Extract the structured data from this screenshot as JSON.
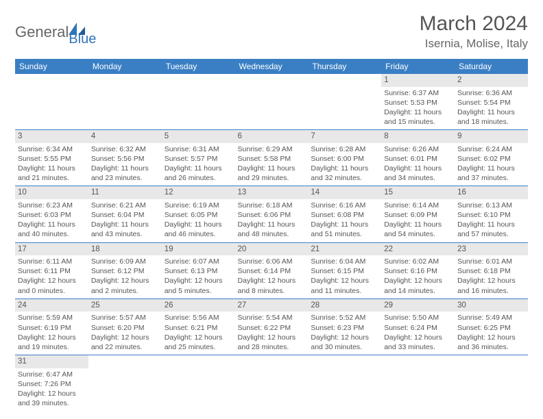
{
  "logo": {
    "part1": "General",
    "part2": "Blue"
  },
  "title": "March 2024",
  "location": "Isernia, Molise, Italy",
  "colors": {
    "header_bg": "#3a7fc4",
    "header_text": "#ffffff",
    "daynum_bg": "#e8e8e8",
    "text": "#555555",
    "border": "#3a7fc4",
    "logo_gray": "#666666",
    "logo_blue": "#2e75b6"
  },
  "weekdays": [
    "Sunday",
    "Monday",
    "Tuesday",
    "Wednesday",
    "Thursday",
    "Friday",
    "Saturday"
  ],
  "days": {
    "d1": {
      "n": "1",
      "sr": "Sunrise: 6:37 AM",
      "ss": "Sunset: 5:53 PM",
      "dl1": "Daylight: 11 hours",
      "dl2": "and 15 minutes."
    },
    "d2": {
      "n": "2",
      "sr": "Sunrise: 6:36 AM",
      "ss": "Sunset: 5:54 PM",
      "dl1": "Daylight: 11 hours",
      "dl2": "and 18 minutes."
    },
    "d3": {
      "n": "3",
      "sr": "Sunrise: 6:34 AM",
      "ss": "Sunset: 5:55 PM",
      "dl1": "Daylight: 11 hours",
      "dl2": "and 21 minutes."
    },
    "d4": {
      "n": "4",
      "sr": "Sunrise: 6:32 AM",
      "ss": "Sunset: 5:56 PM",
      "dl1": "Daylight: 11 hours",
      "dl2": "and 23 minutes."
    },
    "d5": {
      "n": "5",
      "sr": "Sunrise: 6:31 AM",
      "ss": "Sunset: 5:57 PM",
      "dl1": "Daylight: 11 hours",
      "dl2": "and 26 minutes."
    },
    "d6": {
      "n": "6",
      "sr": "Sunrise: 6:29 AM",
      "ss": "Sunset: 5:58 PM",
      "dl1": "Daylight: 11 hours",
      "dl2": "and 29 minutes."
    },
    "d7": {
      "n": "7",
      "sr": "Sunrise: 6:28 AM",
      "ss": "Sunset: 6:00 PM",
      "dl1": "Daylight: 11 hours",
      "dl2": "and 32 minutes."
    },
    "d8": {
      "n": "8",
      "sr": "Sunrise: 6:26 AM",
      "ss": "Sunset: 6:01 PM",
      "dl1": "Daylight: 11 hours",
      "dl2": "and 34 minutes."
    },
    "d9": {
      "n": "9",
      "sr": "Sunrise: 6:24 AM",
      "ss": "Sunset: 6:02 PM",
      "dl1": "Daylight: 11 hours",
      "dl2": "and 37 minutes."
    },
    "d10": {
      "n": "10",
      "sr": "Sunrise: 6:23 AM",
      "ss": "Sunset: 6:03 PM",
      "dl1": "Daylight: 11 hours",
      "dl2": "and 40 minutes."
    },
    "d11": {
      "n": "11",
      "sr": "Sunrise: 6:21 AM",
      "ss": "Sunset: 6:04 PM",
      "dl1": "Daylight: 11 hours",
      "dl2": "and 43 minutes."
    },
    "d12": {
      "n": "12",
      "sr": "Sunrise: 6:19 AM",
      "ss": "Sunset: 6:05 PM",
      "dl1": "Daylight: 11 hours",
      "dl2": "and 46 minutes."
    },
    "d13": {
      "n": "13",
      "sr": "Sunrise: 6:18 AM",
      "ss": "Sunset: 6:06 PM",
      "dl1": "Daylight: 11 hours",
      "dl2": "and 48 minutes."
    },
    "d14": {
      "n": "14",
      "sr": "Sunrise: 6:16 AM",
      "ss": "Sunset: 6:08 PM",
      "dl1": "Daylight: 11 hours",
      "dl2": "and 51 minutes."
    },
    "d15": {
      "n": "15",
      "sr": "Sunrise: 6:14 AM",
      "ss": "Sunset: 6:09 PM",
      "dl1": "Daylight: 11 hours",
      "dl2": "and 54 minutes."
    },
    "d16": {
      "n": "16",
      "sr": "Sunrise: 6:13 AM",
      "ss": "Sunset: 6:10 PM",
      "dl1": "Daylight: 11 hours",
      "dl2": "and 57 minutes."
    },
    "d17": {
      "n": "17",
      "sr": "Sunrise: 6:11 AM",
      "ss": "Sunset: 6:11 PM",
      "dl1": "Daylight: 12 hours",
      "dl2": "and 0 minutes."
    },
    "d18": {
      "n": "18",
      "sr": "Sunrise: 6:09 AM",
      "ss": "Sunset: 6:12 PM",
      "dl1": "Daylight: 12 hours",
      "dl2": "and 2 minutes."
    },
    "d19": {
      "n": "19",
      "sr": "Sunrise: 6:07 AM",
      "ss": "Sunset: 6:13 PM",
      "dl1": "Daylight: 12 hours",
      "dl2": "and 5 minutes."
    },
    "d20": {
      "n": "20",
      "sr": "Sunrise: 6:06 AM",
      "ss": "Sunset: 6:14 PM",
      "dl1": "Daylight: 12 hours",
      "dl2": "and 8 minutes."
    },
    "d21": {
      "n": "21",
      "sr": "Sunrise: 6:04 AM",
      "ss": "Sunset: 6:15 PM",
      "dl1": "Daylight: 12 hours",
      "dl2": "and 11 minutes."
    },
    "d22": {
      "n": "22",
      "sr": "Sunrise: 6:02 AM",
      "ss": "Sunset: 6:16 PM",
      "dl1": "Daylight: 12 hours",
      "dl2": "and 14 minutes."
    },
    "d23": {
      "n": "23",
      "sr": "Sunrise: 6:01 AM",
      "ss": "Sunset: 6:18 PM",
      "dl1": "Daylight: 12 hours",
      "dl2": "and 16 minutes."
    },
    "d24": {
      "n": "24",
      "sr": "Sunrise: 5:59 AM",
      "ss": "Sunset: 6:19 PM",
      "dl1": "Daylight: 12 hours",
      "dl2": "and 19 minutes."
    },
    "d25": {
      "n": "25",
      "sr": "Sunrise: 5:57 AM",
      "ss": "Sunset: 6:20 PM",
      "dl1": "Daylight: 12 hours",
      "dl2": "and 22 minutes."
    },
    "d26": {
      "n": "26",
      "sr": "Sunrise: 5:56 AM",
      "ss": "Sunset: 6:21 PM",
      "dl1": "Daylight: 12 hours",
      "dl2": "and 25 minutes."
    },
    "d27": {
      "n": "27",
      "sr": "Sunrise: 5:54 AM",
      "ss": "Sunset: 6:22 PM",
      "dl1": "Daylight: 12 hours",
      "dl2": "and 28 minutes."
    },
    "d28": {
      "n": "28",
      "sr": "Sunrise: 5:52 AM",
      "ss": "Sunset: 6:23 PM",
      "dl1": "Daylight: 12 hours",
      "dl2": "and 30 minutes."
    },
    "d29": {
      "n": "29",
      "sr": "Sunrise: 5:50 AM",
      "ss": "Sunset: 6:24 PM",
      "dl1": "Daylight: 12 hours",
      "dl2": "and 33 minutes."
    },
    "d30": {
      "n": "30",
      "sr": "Sunrise: 5:49 AM",
      "ss": "Sunset: 6:25 PM",
      "dl1": "Daylight: 12 hours",
      "dl2": "and 36 minutes."
    },
    "d31": {
      "n": "31",
      "sr": "Sunrise: 6:47 AM",
      "ss": "Sunset: 7:26 PM",
      "dl1": "Daylight: 12 hours",
      "dl2": "and 39 minutes."
    }
  },
  "grid": [
    [
      null,
      null,
      null,
      null,
      null,
      "d1",
      "d2"
    ],
    [
      "d3",
      "d4",
      "d5",
      "d6",
      "d7",
      "d8",
      "d9"
    ],
    [
      "d10",
      "d11",
      "d12",
      "d13",
      "d14",
      "d15",
      "d16"
    ],
    [
      "d17",
      "d18",
      "d19",
      "d20",
      "d21",
      "d22",
      "d23"
    ],
    [
      "d24",
      "d25",
      "d26",
      "d27",
      "d28",
      "d29",
      "d30"
    ],
    [
      "d31",
      null,
      null,
      null,
      null,
      null,
      null
    ]
  ]
}
